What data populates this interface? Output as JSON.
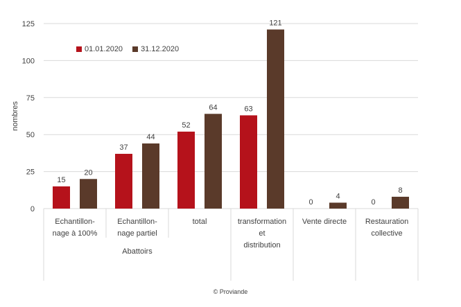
{
  "chart_data": {
    "type": "bar",
    "title": "",
    "ylabel": "nombres",
    "xlabel": "",
    "ylim": [
      0,
      125
    ],
    "yticks": [
      0,
      25,
      50,
      75,
      100,
      125
    ],
    "grid": true,
    "legend_position": "top-left",
    "colors": {
      "series1": "#b5121b",
      "series2": "#5a3a2a",
      "grid": "#d9d9d9",
      "text": "#404040"
    },
    "categories": [
      {
        "lines": [
          "Echantillon-",
          "nage à 100%"
        ]
      },
      {
        "lines": [
          "Echantillon-",
          "nage partiel"
        ]
      },
      {
        "lines": [
          "total"
        ]
      },
      {
        "lines": [
          "transformation",
          "et",
          "distribution"
        ]
      },
      {
        "lines": [
          "Vente directe"
        ]
      },
      {
        "lines": [
          "Restauration",
          "collective"
        ]
      }
    ],
    "groups": [
      {
        "label": "Abattoirs",
        "span": [
          0,
          2
        ]
      }
    ],
    "series": [
      {
        "name": "01.01.2020",
        "values": [
          15,
          37,
          52,
          63,
          0,
          0
        ]
      },
      {
        "name": "31.12.2020",
        "values": [
          20,
          44,
          64,
          121,
          4,
          8
        ]
      }
    ]
  },
  "credit": "© Proviande"
}
